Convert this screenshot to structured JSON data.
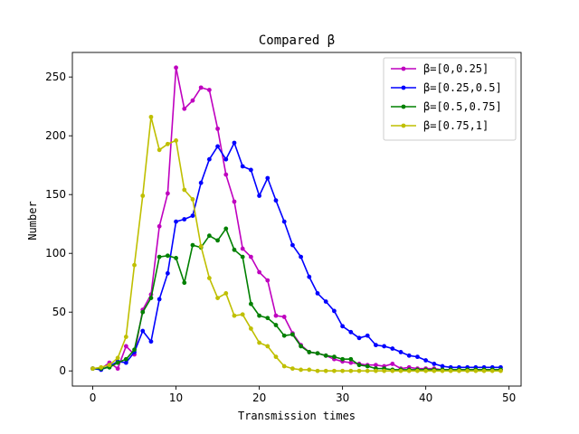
{
  "chart_data": {
    "type": "line",
    "title": "Compared  β",
    "xlabel": "Transmission times",
    "ylabel": "Number",
    "xlim": [
      -2.45,
      51.45
    ],
    "ylim": [
      -12.9,
      270.9
    ],
    "xticks": [
      0,
      10,
      20,
      30,
      40,
      50
    ],
    "yticks": [
      0,
      50,
      100,
      150,
      200,
      250
    ],
    "grid": false,
    "legend_position": "top-right",
    "x": [
      0,
      1,
      2,
      3,
      4,
      5,
      6,
      7,
      8,
      9,
      10,
      11,
      12,
      13,
      14,
      15,
      16,
      17,
      18,
      19,
      20,
      21,
      22,
      23,
      24,
      25,
      26,
      27,
      28,
      29,
      30,
      31,
      32,
      33,
      34,
      35,
      36,
      37,
      38,
      39,
      40,
      41,
      42,
      43,
      44,
      45,
      46,
      47,
      48,
      49
    ],
    "series": [
      {
        "name": "β=[0,0.25]",
        "color": "#bf00bf",
        "values": [
          2,
          2,
          7,
          2,
          21,
          14,
          52,
          65,
          123,
          151,
          258,
          223,
          230,
          241,
          239,
          206,
          167,
          144,
          104,
          97,
          84,
          77,
          47,
          46,
          32,
          22,
          16,
          15,
          13,
          10,
          8,
          7,
          6,
          5,
          5,
          4,
          6,
          2,
          3,
          2,
          2,
          2,
          1,
          1,
          1,
          1,
          1,
          1,
          1,
          1
        ]
      },
      {
        "name": "β=[0.25,0.5]",
        "color": "#0000ff",
        "values": [
          2,
          1,
          4,
          8,
          7,
          16,
          34,
          25,
          61,
          83,
          127,
          129,
          132,
          160,
          180,
          191,
          180,
          194,
          174,
          171,
          149,
          164,
          145,
          127,
          107,
          97,
          80,
          66,
          59,
          51,
          38,
          33,
          28,
          30,
          22,
          21,
          19,
          16,
          13,
          12,
          9,
          6,
          4,
          3,
          3,
          3,
          3,
          3,
          3,
          3
        ]
      },
      {
        "name": "β=[0.5,0.75]",
        "color": "#008000",
        "values": [
          2,
          2,
          3,
          7,
          10,
          18,
          50,
          62,
          97,
          98,
          96,
          75,
          107,
          105,
          115,
          111,
          121,
          103,
          97,
          57,
          47,
          45,
          39,
          30,
          31,
          21,
          16,
          15,
          13,
          12,
          10,
          10,
          5,
          4,
          2,
          2,
          1,
          1,
          1,
          1,
          1,
          1,
          1,
          1,
          1,
          1,
          1,
          1,
          1,
          1
        ]
      },
      {
        "name": "β=[0.75,1]",
        "color": "#bfbf00",
        "values": [
          2,
          3,
          5,
          11,
          29,
          90,
          149,
          216,
          188,
          193,
          196,
          154,
          146,
          106,
          79,
          62,
          66,
          47,
          48,
          36,
          24,
          21,
          12,
          4,
          2,
          1,
          1,
          0,
          0,
          0,
          0,
          0,
          0,
          0,
          0,
          0,
          0,
          0,
          0,
          0,
          0,
          0,
          0,
          0,
          0,
          0,
          0,
          0,
          0,
          0
        ]
      }
    ]
  }
}
